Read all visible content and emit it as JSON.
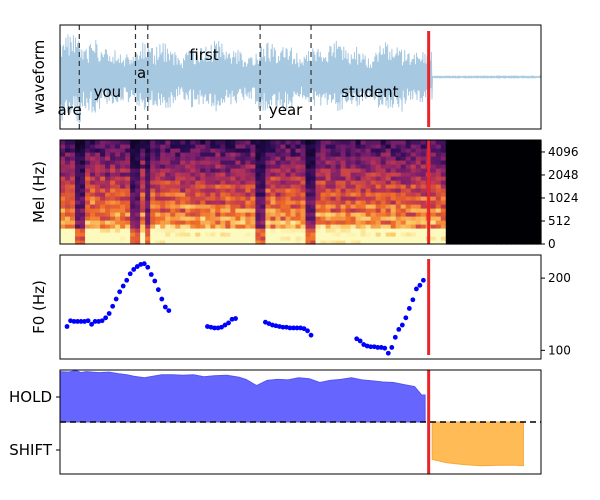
{
  "chart_data": [
    {
      "type": "line",
      "ylabel": "waveform",
      "color": "#a6c8e0",
      "words": [
        {
          "text": "are",
          "start": 0.0,
          "end": 0.11,
          "label_level": "low"
        },
        {
          "text": "you",
          "start": 0.11,
          "end": 0.43,
          "label_level": "mid"
        },
        {
          "text": "a",
          "start": 0.43,
          "end": 0.5,
          "label_level": "high"
        },
        {
          "text": "first",
          "start": 0.5,
          "end": 1.14,
          "label_level": "top"
        },
        {
          "text": "year",
          "start": 1.14,
          "end": 1.43,
          "label_level": "low"
        },
        {
          "text": "student",
          "start": 1.43,
          "end": 2.1,
          "label_level": "mid"
        }
      ],
      "boundaries": [
        0.11,
        0.43,
        0.5,
        1.14,
        1.43
      ],
      "current_time": 2.1,
      "xlim": [
        0.0,
        2.74
      ]
    },
    {
      "type": "heatmap",
      "ylabel": "Mel (Hz)",
      "yticks": [
        "0",
        "512",
        "1024",
        "2048",
        "4096"
      ],
      "current_time": 2.1
    },
    {
      "type": "scatter",
      "ylabel": "F0 (Hz)",
      "yticks": [
        "100",
        "200"
      ],
      "ylim": [
        88,
        232
      ],
      "color": "#0000ff",
      "segments": [
        {
          "x": [
            0.04,
            0.06,
            0.08,
            0.1,
            0.12,
            0.14,
            0.16,
            0.18,
            0.2,
            0.22,
            0.24,
            0.26,
            0.28,
            0.3,
            0.32,
            0.34,
            0.36,
            0.38,
            0.4,
            0.42,
            0.44,
            0.46,
            0.48,
            0.5,
            0.52,
            0.54,
            0.56
          ],
          "y": [
            133,
            141,
            140,
            140,
            140,
            140,
            141,
            136,
            140,
            140,
            141,
            145,
            151,
            161,
            171,
            181,
            189,
            197,
            206,
            212,
            216,
            219,
            220,
            215,
            205,
            196,
            184
          ]
        },
        {
          "x": [
            0.58,
            0.6,
            0.62
          ],
          "y": [
            171,
            160,
            155
          ]
        },
        {
          "x": [
            0.84,
            0.86,
            0.88,
            0.9,
            0.92,
            0.94,
            0.96,
            0.98,
            1.0
          ],
          "y": [
            133,
            132,
            131,
            131,
            132,
            135,
            138,
            143,
            144
          ]
        },
        {
          "x": [
            1.17,
            1.19,
            1.21,
            1.23,
            1.25,
            1.27,
            1.29,
            1.31,
            1.33,
            1.35,
            1.37,
            1.39,
            1.41,
            1.43
          ],
          "y": [
            139,
            137,
            135,
            134,
            133,
            132,
            132,
            131,
            131,
            131,
            131,
            130,
            127,
            121
          ]
        },
        {
          "x": [
            1.69,
            1.71,
            1.73,
            1.75,
            1.77,
            1.79,
            1.81,
            1.83,
            1.85,
            1.87,
            1.89,
            1.91,
            1.93,
            1.95,
            1.97,
            1.99,
            2.01,
            2.03,
            2.05,
            2.07
          ],
          "y": [
            116,
            113,
            108,
            106,
            105,
            105,
            104,
            104,
            103,
            96,
            104,
            118,
            129,
            135,
            145,
            158,
            170,
            185,
            190,
            197
          ]
        }
      ],
      "current_time": 2.1
    },
    {
      "type": "area",
      "yticks": [
        "HOLD",
        "SHIFT"
      ],
      "series": [
        {
          "name": "HOLD",
          "color": "#6666ff",
          "x": [
            0.0,
            0.05,
            0.09,
            0.12,
            0.15,
            0.22,
            0.28,
            0.33,
            0.38,
            0.42,
            0.48,
            0.53,
            0.58,
            0.64,
            0.7,
            0.76,
            0.82,
            0.88,
            0.95,
            1.02,
            1.06,
            1.12,
            1.18,
            1.24,
            1.3,
            1.36,
            1.42,
            1.48,
            1.54,
            1.6,
            1.66,
            1.72,
            1.78,
            1.84,
            1.9,
            1.96,
            2.02,
            2.06,
            2.08
          ],
          "y": [
            0.97,
            0.96,
            0.99,
            0.95,
            0.97,
            0.95,
            0.96,
            0.93,
            0.91,
            0.88,
            0.85,
            0.88,
            0.91,
            0.91,
            0.9,
            0.91,
            0.87,
            0.89,
            0.9,
            0.86,
            0.82,
            0.7,
            0.8,
            0.82,
            0.81,
            0.85,
            0.83,
            0.76,
            0.8,
            0.82,
            0.85,
            0.81,
            0.79,
            0.77,
            0.76,
            0.72,
            0.68,
            0.52,
            0.52
          ]
        },
        {
          "name": "SHIFT",
          "color": "#ffbb55",
          "x": [
            2.12,
            2.2,
            2.3,
            2.4,
            2.5,
            2.6,
            2.64
          ],
          "y": [
            0.72,
            0.78,
            0.82,
            0.84,
            0.83,
            0.83,
            0.84
          ]
        }
      ],
      "threshold": 0.5,
      "current_time": 2.1
    }
  ]
}
